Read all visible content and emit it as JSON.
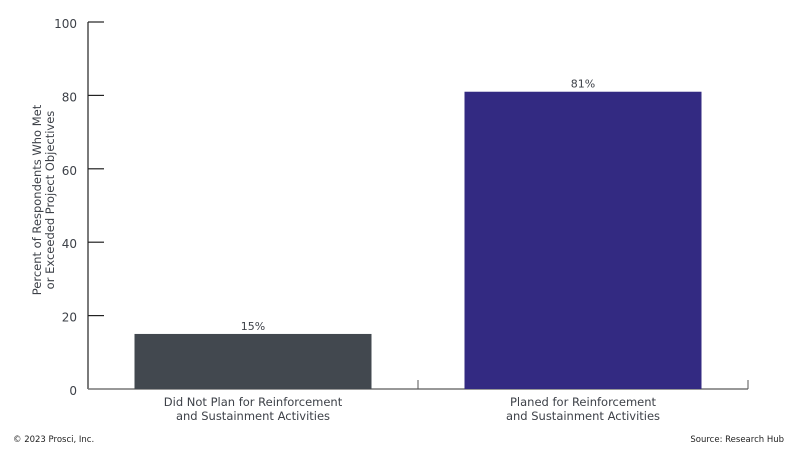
{
  "chart_data": {
    "type": "bar",
    "categories": [
      "Did Not Plan for Reinforcement\nand Sustainment Activities",
      "Planed for Reinforcement\nand Sustainment Activities"
    ],
    "values": [
      15,
      81
    ],
    "data_labels": [
      "15%",
      "81%"
    ],
    "colors": [
      "#42484f",
      "#332a82"
    ],
    "title": "",
    "xlabel": "",
    "ylabel": [
      "Percent of Respondents Who Met",
      "or Exceeded Project Objectives"
    ],
    "ylim": [
      0,
      100
    ],
    "yticks": [
      0,
      20,
      40,
      60,
      80,
      100
    ],
    "grid": false
  },
  "footer": {
    "copyright": "© 2023 Prosci, Inc.",
    "source": "Source: Research Hub"
  }
}
